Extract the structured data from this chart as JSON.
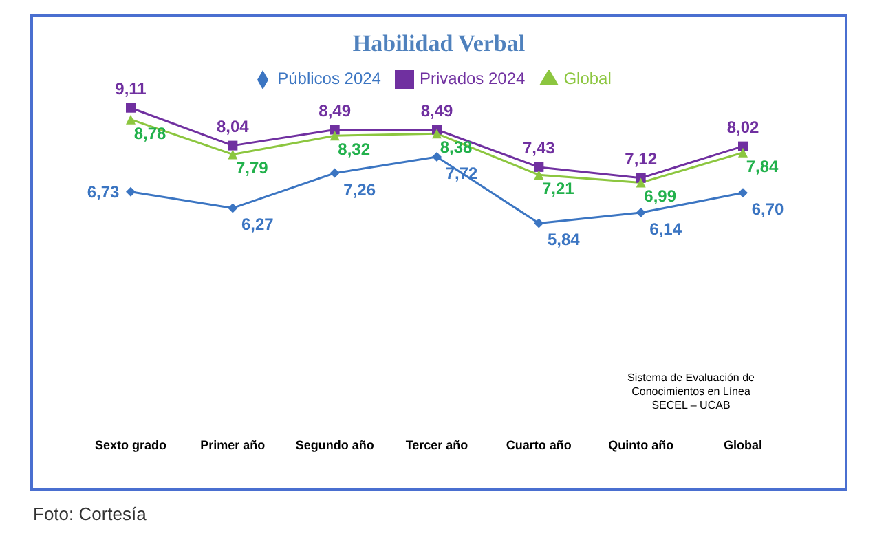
{
  "chart_data": {
    "type": "line",
    "title": "Habilidad Verbal",
    "categories": [
      "Sexto grado",
      "Primer año",
      "Segundo año",
      "Tercer año",
      "Cuarto año",
      "Quinto año",
      "Global"
    ],
    "series": [
      {
        "name": "Públicos 2024",
        "color": "#3b75c2",
        "marker": "diamond",
        "values": [
          6.73,
          6.27,
          7.26,
          7.72,
          5.84,
          6.14,
          6.7
        ],
        "value_labels": [
          "6,73",
          "6,27",
          "7,26",
          "7,72",
          "5,84",
          "6,14",
          "6,70"
        ]
      },
      {
        "name": "Privados 2024",
        "color": "#7030a0",
        "marker": "square",
        "values": [
          9.11,
          8.04,
          8.49,
          8.49,
          7.43,
          7.12,
          8.02
        ],
        "value_labels": [
          "9,11",
          "8,04",
          "8,49",
          "8,49",
          "7,43",
          "7,12",
          "8,02"
        ]
      },
      {
        "name": "Global",
        "color": "#8cc63f",
        "marker": "triangle",
        "values": [
          8.78,
          7.79,
          8.32,
          8.38,
          7.21,
          6.99,
          7.84
        ],
        "value_labels": [
          "8,78",
          "7,79",
          "8,32",
          "8,38",
          "7,21",
          "6,99",
          "7,84"
        ]
      }
    ],
    "legend": "top",
    "grid": false,
    "line_style": "solid",
    "annotations": [
      "Sistema de Evaluación de\nConocimientos en Línea\nSECEL – UCAB",
      "Foto: Cortesía"
    ]
  }
}
